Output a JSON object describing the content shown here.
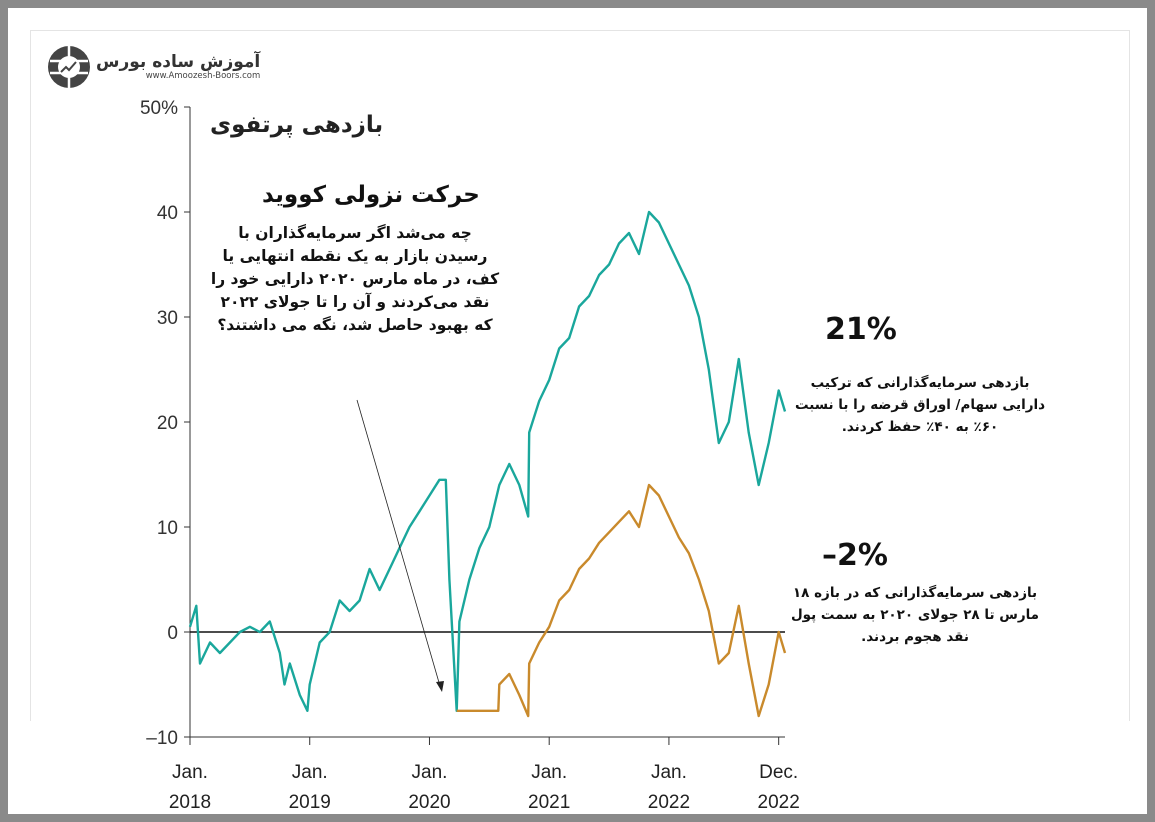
{
  "logo": {
    "name": "آموزش ساده بورس",
    "url": "www.Amoozesh-Boors.com",
    "icon": "globe-chart-icon"
  },
  "title": "بازدهی پرتفوی",
  "annotation": {
    "heading": "حرکت نزولی کووید",
    "text": "چه می‌شد اگر سرمایه‌گذاران با رسیدن بازار به یک نقطه انتهایی یا کف، در ماه مارس ۲۰۲۰ دارایی خود را نقد می‌کردند و آن را تا جولای ۲۰۲۲ که بهبود حاصل شد، نگه می داشتند؟"
  },
  "callouts": [
    {
      "value": "21%",
      "text": "بازدهی سرمایه‌گذارانی که ترکیب دارایی سهام/ اوراق قرضه را با نسبت ۶۰٪ به ۴۰٪ حفظ کردند."
    },
    {
      "value": "–2%",
      "text": "بازدهی سرمایه‌گذارانی که در بازه ۱۸ مارس تا ۲۸ جولای ۲۰۲۰ به سمت پول نقد هجوم بردند."
    }
  ],
  "chart_data": {
    "type": "line",
    "ylim": [
      -10,
      50
    ],
    "yticks": [
      {
        "v": 50,
        "label": "50%"
      },
      {
        "v": 40,
        "label": "40"
      },
      {
        "v": 30,
        "label": "30"
      },
      {
        "v": 20,
        "label": "20"
      },
      {
        "v": 10,
        "label": "10"
      },
      {
        "v": 0,
        "label": "0"
      },
      {
        "v": -10,
        "label": "–10"
      }
    ],
    "xticks": [
      {
        "d": "2018-01",
        "l1": "Jan.",
        "l2": "2018"
      },
      {
        "d": "2019-01",
        "l1": "Jan.",
        "l2": "2019"
      },
      {
        "d": "2020-01",
        "l1": "Jan.",
        "l2": "2020"
      },
      {
        "d": "2021-01",
        "l1": "Jan.",
        "l2": "2021"
      },
      {
        "d": "2022-01",
        "l1": "Jan.",
        "l2": "2022"
      },
      {
        "d": "2022-12",
        "l1": "Dec.",
        "l2": "2022"
      }
    ],
    "series": [
      {
        "color": "#1aa79c",
        "points": [
          [
            "2018-01-01",
            0.5
          ],
          [
            "2018-01-20",
            2.5
          ],
          [
            "2018-02-01",
            -3
          ],
          [
            "2018-03-01",
            -1
          ],
          [
            "2018-04-01",
            -2
          ],
          [
            "2018-05-01",
            -1
          ],
          [
            "2018-06-01",
            0
          ],
          [
            "2018-07-01",
            0.5
          ],
          [
            "2018-08-01",
            0
          ],
          [
            "2018-09-01",
            1
          ],
          [
            "2018-10-01",
            -2
          ],
          [
            "2018-10-15",
            -5
          ],
          [
            "2018-11-01",
            -3
          ],
          [
            "2018-12-01",
            -6
          ],
          [
            "2018-12-24",
            -7.5
          ],
          [
            "2019-01-01",
            -5
          ],
          [
            "2019-02-01",
            -1
          ],
          [
            "2019-03-01",
            0
          ],
          [
            "2019-04-01",
            3
          ],
          [
            "2019-05-01",
            2
          ],
          [
            "2019-06-01",
            3
          ],
          [
            "2019-07-01",
            6
          ],
          [
            "2019-08-01",
            4
          ],
          [
            "2019-09-01",
            6
          ],
          [
            "2019-10-01",
            8
          ],
          [
            "2019-11-01",
            10
          ],
          [
            "2019-12-01",
            11.5
          ],
          [
            "2020-01-01",
            13
          ],
          [
            "2020-02-01",
            14.5
          ],
          [
            "2020-02-20",
            14.5
          ],
          [
            "2020-03-01",
            5
          ],
          [
            "2020-03-23",
            -7.5
          ],
          [
            "2020-04-01",
            1
          ],
          [
            "2020-05-01",
            5
          ],
          [
            "2020-06-01",
            8
          ],
          [
            "2020-07-01",
            10
          ],
          [
            "2020-08-01",
            14
          ],
          [
            "2020-09-01",
            16
          ],
          [
            "2020-10-01",
            14
          ],
          [
            "2020-10-28",
            11
          ],
          [
            "2020-11-01",
            19
          ],
          [
            "2020-12-01",
            22
          ],
          [
            "2021-01-01",
            24
          ],
          [
            "2021-02-01",
            27
          ],
          [
            "2021-03-01",
            28
          ],
          [
            "2021-04-01",
            31
          ],
          [
            "2021-05-01",
            32
          ],
          [
            "2021-06-01",
            34
          ],
          [
            "2021-07-01",
            35
          ],
          [
            "2021-08-01",
            37
          ],
          [
            "2021-09-01",
            38
          ],
          [
            "2021-10-01",
            36
          ],
          [
            "2021-11-01",
            40
          ],
          [
            "2021-12-01",
            39
          ],
          [
            "2022-01-01",
            37
          ],
          [
            "2022-02-01",
            35
          ],
          [
            "2022-03-01",
            33
          ],
          [
            "2022-04-01",
            30
          ],
          [
            "2022-05-01",
            25
          ],
          [
            "2022-06-01",
            18
          ],
          [
            "2022-07-01",
            20
          ],
          [
            "2022-08-01",
            26
          ],
          [
            "2022-09-01",
            19
          ],
          [
            "2022-10-01",
            14
          ],
          [
            "2022-11-01",
            18
          ],
          [
            "2022-12-01",
            23
          ],
          [
            "2022-12-20",
            21
          ]
        ]
      },
      {
        "color": "#c98a2c",
        "points": [
          [
            "2020-03-23",
            -7.5
          ],
          [
            "2020-07-28",
            -7.5
          ],
          [
            "2020-08-01",
            -5
          ],
          [
            "2020-09-01",
            -4
          ],
          [
            "2020-10-01",
            -6
          ],
          [
            "2020-10-28",
            -8
          ],
          [
            "2020-11-01",
            -3
          ],
          [
            "2020-12-01",
            -1
          ],
          [
            "2021-01-01",
            0.5
          ],
          [
            "2021-02-01",
            3
          ],
          [
            "2021-03-01",
            4
          ],
          [
            "2021-04-01",
            6
          ],
          [
            "2021-05-01",
            7
          ],
          [
            "2021-06-01",
            8.5
          ],
          [
            "2021-07-01",
            9.5
          ],
          [
            "2021-08-01",
            10.5
          ],
          [
            "2021-09-01",
            11.5
          ],
          [
            "2021-10-01",
            10
          ],
          [
            "2021-11-01",
            14
          ],
          [
            "2021-12-01",
            13
          ],
          [
            "2022-01-01",
            11
          ],
          [
            "2022-02-01",
            9
          ],
          [
            "2022-03-01",
            7.5
          ],
          [
            "2022-04-01",
            5
          ],
          [
            "2022-05-01",
            2
          ],
          [
            "2022-06-01",
            -3
          ],
          [
            "2022-07-01",
            -2
          ],
          [
            "2022-08-01",
            2.5
          ],
          [
            "2022-09-01",
            -3
          ],
          [
            "2022-10-01",
            -8
          ],
          [
            "2022-11-01",
            -5
          ],
          [
            "2022-12-01",
            0
          ],
          [
            "2022-12-20",
            -2
          ]
        ]
      }
    ]
  }
}
